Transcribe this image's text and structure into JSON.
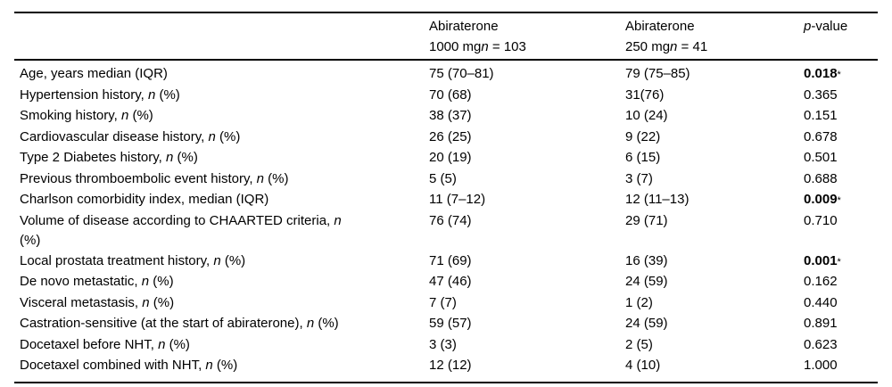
{
  "colors": {
    "text": "#000000",
    "rule": "#000000",
    "background": "#ffffff"
  },
  "table": {
    "columns": {
      "col2": {
        "line1": "Abiraterone",
        "dose": "1000 mg",
        "n_italic": "n",
        "n_eq": " = 103"
      },
      "col3": {
        "line1": "Abiraterone",
        "dose": "250 mg",
        "n_italic": "n",
        "n_eq": " = 41"
      },
      "col4": {
        "p_italic": "p",
        "p_rest": "-value"
      }
    },
    "rows": [
      {
        "pre": "Age, years median (IQR)",
        "n": "",
        "post": "",
        "post_block": "",
        "v1": "75 (70–81)",
        "v2": "79 (75–85)",
        "p_bold": "0.018",
        "p": "",
        "star": "*"
      },
      {
        "pre": "Hypertension history, ",
        "n": "n",
        "post": " (%)",
        "post_block": "",
        "v1": "70 (68)",
        "v2": "31(76)",
        "p_bold": "",
        "p": "0.365",
        "star": ""
      },
      {
        "pre": "Smoking history, ",
        "n": "n",
        "post": " (%)",
        "post_block": "",
        "v1": "38 (37)",
        "v2": "10 (24)",
        "p_bold": "",
        "p": "0.151",
        "star": ""
      },
      {
        "pre": "Cardiovascular disease history, ",
        "n": "n",
        "post": " (%)",
        "post_block": "",
        "v1": "26 (25)",
        "v2": "9 (22)",
        "p_bold": "",
        "p": "0.678",
        "star": ""
      },
      {
        "pre": "Type 2 Diabetes history, ",
        "n": "n",
        "post": " (%)",
        "post_block": "",
        "v1": "20 (19)",
        "v2": "6 (15)",
        "p_bold": "",
        "p": "0.501",
        "star": ""
      },
      {
        "pre": "Previous thromboembolic event history, ",
        "n": "n",
        "post": " (%)",
        "post_block": "",
        "v1": "5 (5)",
        "v2": "3 (7)",
        "p_bold": "",
        "p": "0.688",
        "star": ""
      },
      {
        "pre": "Charlson comorbidity index, median (IQR)",
        "n": "",
        "post": "",
        "post_block": "",
        "v1": "11 (7–12)",
        "v2": "12 (11–13)",
        "p_bold": "0.009",
        "p": "",
        "star": "*"
      },
      {
        "pre": "Volume of disease according to CHAARTED criteria, ",
        "n": "n",
        "post": "",
        "post_block": "(%)",
        "v1": "76 (74)",
        "v2": "29 (71)",
        "p_bold": "",
        "p": "0.710",
        "star": ""
      },
      {
        "pre": "Local prostata treatment history, ",
        "n": "n",
        "post": " (%)",
        "post_block": "",
        "v1": "71 (69)",
        "v2": "16 (39)",
        "p_bold": "0.001",
        "p": "",
        "star": "*"
      },
      {
        "pre": "De novo metastatic, ",
        "n": "n",
        "post": " (%)",
        "post_block": "",
        "v1": "47 (46)",
        "v2": "24 (59)",
        "p_bold": "",
        "p": "0.162",
        "star": ""
      },
      {
        "pre": "Visceral metastasis, ",
        "n": "n",
        "post": " (%)",
        "post_block": "",
        "v1": "7 (7)",
        "v2": "1 (2)",
        "p_bold": "",
        "p": "0.440",
        "star": ""
      },
      {
        "pre": "Castration-sensitive (at the start of abiraterone), ",
        "n": "n",
        "post": " (%)",
        "post_block": "",
        "v1": "59 (57)",
        "v2": "24 (59)",
        "p_bold": "",
        "p": "0.891",
        "star": ""
      },
      {
        "pre": "Docetaxel before NHT, ",
        "n": "n",
        "post": " (%)",
        "post_block": "",
        "v1": "3 (3)",
        "v2": "2 (5)",
        "p_bold": "",
        "p": "0.623",
        "star": ""
      },
      {
        "pre": "Docetaxel combined with NHT, ",
        "n": "n",
        "post": " (%)",
        "post_block": "",
        "v1": "12 (12)",
        "v2": "4 (10)",
        "p_bold": "",
        "p": "1.000",
        "star": ""
      }
    ]
  }
}
